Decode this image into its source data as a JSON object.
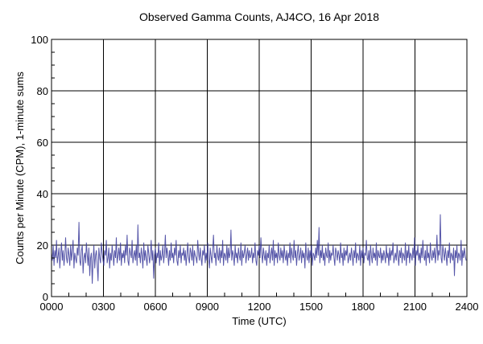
{
  "chart_data": {
    "type": "line",
    "title": "Observed Gamma Counts, AJ4CO, 16 Apr 2018",
    "xlabel": "Time (UTC)",
    "ylabel": "Counts per Minute (CPM), 1-minute sums",
    "xlim": [
      0,
      24
    ],
    "ylim": [
      0,
      100
    ],
    "x_ticks": [
      "0000",
      "0300",
      "0600",
      "0900",
      "1200",
      "1500",
      "1800",
      "2100",
      "2400"
    ],
    "y_ticks": [
      "0",
      "20",
      "40",
      "60",
      "80",
      "100"
    ],
    "grid": true,
    "line_color": "#3a3a9a",
    "sample_interval_hours": 0.05,
    "values": [
      17,
      14,
      20,
      12,
      18,
      15,
      22,
      13,
      16,
      19,
      11,
      17,
      21,
      14,
      18,
      12,
      16,
      23,
      15,
      13,
      19,
      16,
      12,
      20,
      14,
      18,
      22,
      11,
      17,
      15,
      13,
      19,
      16,
      29,
      14,
      12,
      18,
      20,
      9,
      15,
      17,
      13,
      21,
      16,
      12,
      19,
      8,
      15,
      17,
      5,
      14,
      20,
      11,
      16,
      18,
      12,
      6,
      19,
      15,
      13,
      21,
      17,
      14,
      12,
      18,
      16,
      22,
      13,
      15,
      19,
      11,
      17,
      14,
      20,
      16,
      12,
      18,
      15,
      23,
      13,
      16,
      19,
      14,
      21,
      12,
      17,
      15,
      18,
      13,
      20,
      16,
      24,
      14,
      12,
      19,
      17,
      15,
      22,
      13,
      16,
      18,
      14,
      20,
      12,
      28,
      15,
      17,
      13,
      19,
      16,
      11,
      21,
      14,
      18,
      15,
      12,
      20,
      17,
      13,
      16,
      22,
      14,
      18,
      7,
      16,
      19,
      13,
      17,
      15,
      21,
      12,
      18,
      14,
      16,
      20,
      13,
      17,
      24,
      15,
      19,
      16,
      12,
      18,
      14,
      21,
      15,
      17,
      13,
      19,
      16,
      22,
      14,
      12,
      18,
      15,
      20,
      13,
      17,
      16,
      19,
      14,
      18,
      12,
      16,
      21,
      15,
      13,
      19,
      17,
      14,
      20,
      12,
      18,
      16,
      15,
      13,
      22,
      17,
      14,
      19,
      15,
      12,
      18,
      16,
      20,
      13,
      17,
      14,
      21,
      15,
      11,
      19,
      16,
      13,
      18,
      24,
      15,
      17,
      12,
      20,
      16,
      14,
      19,
      13,
      18,
      15,
      22,
      12,
      17,
      16,
      14,
      20,
      13,
      19,
      15,
      17,
      26,
      14,
      18,
      16,
      12,
      20,
      15,
      17,
      13,
      19,
      16,
      14,
      21,
      12,
      18,
      15,
      17,
      20,
      13,
      16,
      19,
      14,
      18,
      15,
      16,
      19,
      13,
      17,
      15,
      21,
      14,
      12,
      18,
      16,
      20,
      15,
      23,
      17,
      13,
      19,
      16,
      14,
      18,
      12,
      17,
      15,
      20,
      13,
      16,
      19,
      14,
      22,
      12,
      18,
      15,
      17,
      13,
      21,
      16,
      14,
      19,
      15,
      18,
      13,
      20,
      16,
      14,
      18,
      12,
      17,
      15,
      21,
      13,
      19,
      16,
      14,
      22,
      15,
      18,
      12,
      17,
      20,
      14,
      16,
      19,
      13,
      18,
      15,
      17,
      11,
      21,
      16,
      14,
      19,
      13,
      18,
      15,
      20,
      12,
      17,
      16,
      14,
      19,
      15,
      22,
      16,
      27,
      13,
      18,
      15,
      20,
      14,
      17,
      12,
      19,
      16,
      15,
      21,
      13,
      18,
      14,
      17,
      16,
      20,
      15,
      12,
      19,
      17,
      14,
      18,
      16,
      13,
      21,
      15,
      17,
      12,
      19,
      14,
      18,
      16,
      20,
      13,
      15,
      17,
      14,
      19,
      16,
      12,
      18,
      15,
      21,
      13,
      17,
      16,
      14,
      20,
      12,
      18,
      15,
      19,
      13,
      17,
      16,
      22,
      15,
      14,
      18,
      12,
      20,
      16,
      13,
      19,
      15,
      17,
      14,
      21,
      12,
      18,
      16,
      15,
      19,
      13,
      17,
      14,
      18,
      16,
      13,
      20,
      15,
      17,
      12,
      19,
      14,
      18,
      16,
      21,
      13,
      15,
      17,
      14,
      20,
      16,
      12,
      18,
      15,
      19,
      13,
      17,
      16,
      14,
      21,
      12,
      18,
      15,
      20,
      13,
      17,
      16,
      14,
      19,
      15,
      23,
      12,
      18,
      16,
      20,
      14,
      17,
      13,
      19,
      15,
      22,
      16,
      14,
      18,
      12,
      20,
      15,
      17,
      13,
      21,
      16,
      14,
      18,
      15,
      19,
      13,
      17,
      24,
      14,
      18,
      16,
      32,
      15,
      13,
      20,
      17,
      14,
      19,
      16,
      12,
      18,
      15,
      21,
      13,
      17,
      16,
      14,
      19,
      8,
      18,
      15,
      20,
      13,
      17,
      16,
      14,
      22,
      12,
      18,
      15,
      19,
      16,
      14
    ]
  }
}
